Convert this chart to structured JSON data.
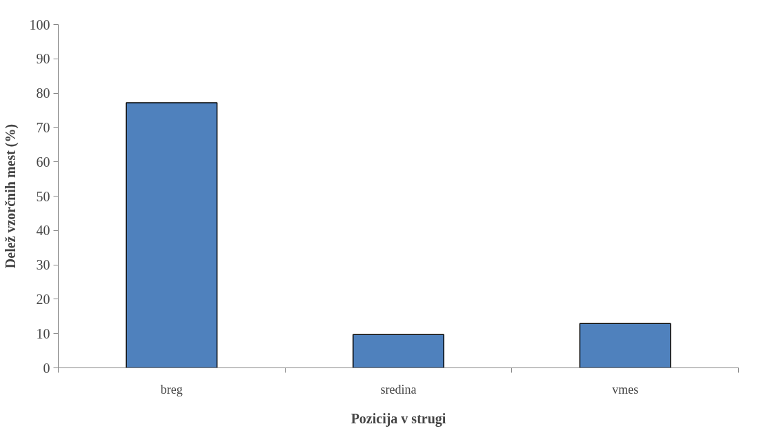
{
  "chart_data": {
    "type": "bar",
    "xlabel": "Pozicija v strugi",
    "ylabel": "Delež vzorčnih mest (%)",
    "categories": [
      "breg",
      "sredina",
      "vmes"
    ],
    "values": [
      77.2,
      9.7,
      12.9
    ],
    "color": "#4f81bd",
    "ylim": [
      0,
      100
    ],
    "yticks": [
      0,
      10,
      20,
      30,
      40,
      50,
      60,
      70,
      80,
      90,
      100
    ],
    "grid": false
  }
}
